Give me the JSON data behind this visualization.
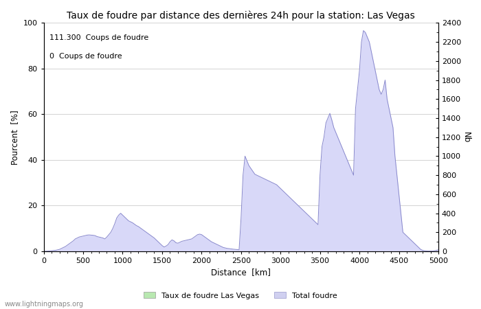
{
  "title": "Taux de foudre par distance des dernières 24h pour la station: Las Vegas",
  "xlabel": "Distance  [km]",
  "ylabel_left": "Pourcent  [%]",
  "ylabel_right": "Nb",
  "annotation_line1": "111.300  Coups de foudre",
  "annotation_line2": "0  Coups de foudre",
  "legend_label1": "Taux de foudre Las Vegas",
  "legend_label2": "Total foudre",
  "legend_color1": "#b8e8b0",
  "legend_color2": "#d0d0f0",
  "watermark": "www.lightningmaps.org",
  "xlim": [
    0,
    5000
  ],
  "ylim_left": [
    0,
    100
  ],
  "ylim_right": [
    0,
    2400
  ],
  "xticks": [
    0,
    500,
    1000,
    1500,
    2000,
    2500,
    3000,
    3500,
    4000,
    4500,
    5000
  ],
  "yticks_left": [
    0,
    20,
    40,
    60,
    80,
    100
  ],
  "yticks_right": [
    0,
    200,
    400,
    600,
    800,
    1000,
    1200,
    1400,
    1600,
    1800,
    2000,
    2200,
    2400
  ],
  "line_color": "#8888cc",
  "fill_color": "#d8d8f8",
  "bg_color": "#ffffff",
  "grid_color": "#999999",
  "title_fontsize": 10,
  "label_fontsize": 8.5,
  "tick_fontsize": 8,
  "x_data": [
    0,
    25,
    50,
    75,
    100,
    125,
    150,
    175,
    200,
    225,
    250,
    275,
    300,
    325,
    350,
    375,
    400,
    425,
    450,
    475,
    500,
    525,
    550,
    575,
    600,
    625,
    650,
    675,
    700,
    725,
    750,
    775,
    800,
    825,
    850,
    875,
    900,
    925,
    950,
    975,
    1000,
    1025,
    1050,
    1075,
    1100,
    1125,
    1150,
    1175,
    1200,
    1225,
    1250,
    1275,
    1300,
    1325,
    1350,
    1375,
    1400,
    1425,
    1450,
    1475,
    1500,
    1525,
    1550,
    1575,
    1600,
    1625,
    1650,
    1675,
    1700,
    1725,
    1750,
    1775,
    1800,
    1825,
    1850,
    1875,
    1900,
    1925,
    1950,
    1975,
    2000,
    2025,
    2050,
    2075,
    2100,
    2125,
    2150,
    2175,
    2200,
    2225,
    2250,
    2275,
    2300,
    2325,
    2350,
    2375,
    2400,
    2425,
    2450,
    2475,
    2500,
    2525,
    2550,
    2575,
    2600,
    2625,
    2650,
    2675,
    2700,
    2725,
    2750,
    2775,
    2800,
    2825,
    2850,
    2875,
    2900,
    2925,
    2950,
    2975,
    3000,
    3025,
    3050,
    3075,
    3100,
    3125,
    3150,
    3175,
    3200,
    3225,
    3250,
    3275,
    3300,
    3325,
    3350,
    3375,
    3400,
    3425,
    3450,
    3475,
    3500,
    3525,
    3550,
    3575,
    3600,
    3625,
    3650,
    3675,
    3700,
    3725,
    3750,
    3775,
    3800,
    3825,
    3850,
    3875,
    3900,
    3925,
    3950,
    3975,
    4000,
    4025,
    4050,
    4075,
    4100,
    4125,
    4150,
    4175,
    4200,
    4225,
    4250,
    4275,
    4300,
    4325,
    4350,
    4375,
    4400,
    4425,
    4450,
    4475,
    4500,
    4525,
    4550,
    4575,
    4600,
    4625,
    4650,
    4675,
    4700,
    4725,
    4750,
    4775,
    4800,
    4825,
    4850,
    4875,
    4900,
    4925,
    4950,
    4975,
    5000
  ],
  "y_total": [
    0,
    0,
    2,
    3,
    5,
    8,
    10,
    15,
    20,
    30,
    40,
    50,
    65,
    80,
    95,
    110,
    130,
    140,
    150,
    155,
    160,
    165,
    170,
    172,
    170,
    168,
    165,
    155,
    150,
    145,
    140,
    130,
    150,
    175,
    200,
    240,
    290,
    350,
    380,
    400,
    380,
    360,
    340,
    320,
    310,
    300,
    285,
    270,
    260,
    245,
    230,
    215,
    200,
    185,
    170,
    155,
    140,
    120,
    100,
    80,
    60,
    45,
    55,
    70,
    100,
    120,
    110,
    90,
    85,
    95,
    105,
    110,
    115,
    120,
    125,
    130,
    145,
    160,
    175,
    180,
    175,
    160,
    145,
    130,
    115,
    100,
    90,
    80,
    70,
    60,
    50,
    40,
    35,
    30,
    28,
    25,
    22,
    20,
    18,
    15,
    350,
    800,
    1000,
    950,
    900,
    870,
    840,
    810,
    800,
    790,
    780,
    770,
    760,
    750,
    740,
    730,
    720,
    710,
    700,
    680,
    660,
    640,
    620,
    600,
    580,
    560,
    540,
    520,
    500,
    480,
    460,
    440,
    420,
    400,
    380,
    360,
    340,
    320,
    300,
    280,
    800,
    1100,
    1200,
    1350,
    1400,
    1450,
    1380,
    1300,
    1250,
    1200,
    1150,
    1100,
    1050,
    1000,
    950,
    900,
    850,
    800,
    1500,
    1700,
    1900,
    2200,
    2320,
    2300,
    2250,
    2200,
    2100,
    2000,
    1900,
    1800,
    1700,
    1650,
    1700,
    1800,
    1600,
    1500,
    1400,
    1300,
    1000,
    800,
    600,
    400,
    200,
    180,
    160,
    140,
    120,
    100,
    80,
    60,
    40,
    20,
    10,
    5,
    3,
    2,
    2,
    2,
    5,
    10,
    15
  ],
  "y_percent": [
    0,
    0,
    0,
    0,
    0,
    0,
    0,
    0,
    0,
    0,
    0,
    0,
    0,
    0,
    0,
    0,
    0,
    0,
    0,
    0,
    0,
    0,
    0,
    0,
    0,
    0,
    0,
    0,
    0,
    0,
    0,
    0,
    0,
    0,
    0,
    0,
    0,
    0,
    0,
    0,
    0,
    0,
    0,
    0,
    0,
    0,
    0,
    0,
    0,
    0,
    0,
    0,
    0,
    0,
    0,
    0,
    0,
    0,
    0,
    0,
    0,
    0,
    0,
    0,
    0,
    0,
    0,
    0,
    0,
    0,
    0,
    0,
    0,
    0,
    0,
    0,
    0,
    0,
    0,
    0,
    0,
    0,
    0,
    0,
    0,
    0,
    0,
    0,
    0,
    0,
    0,
    0,
    0,
    0,
    0,
    0,
    0,
    0,
    0,
    0,
    0,
    0,
    0,
    0,
    0,
    0,
    0,
    0,
    0,
    0,
    0,
    0,
    0,
    0,
    0,
    0,
    0,
    0,
    0,
    0,
    0,
    0,
    0,
    0,
    0,
    0,
    0,
    0,
    0,
    0,
    0,
    0,
    0,
    0,
    0,
    0,
    0,
    0,
    0,
    0,
    0,
    0,
    0,
    0,
    0,
    0,
    0,
    0,
    0,
    0,
    0,
    0,
    0,
    0,
    0,
    0,
    0,
    0,
    0,
    0,
    0,
    0,
    0,
    0,
    0,
    0,
    0,
    0,
    0,
    0,
    0,
    0,
    0,
    0,
    0,
    0,
    0,
    0,
    0,
    0,
    0,
    0,
    0,
    0,
    0,
    0,
    0,
    0,
    0,
    0,
    0,
    0,
    0,
    0,
    0,
    0,
    0,
    0,
    0,
    0,
    0
  ]
}
